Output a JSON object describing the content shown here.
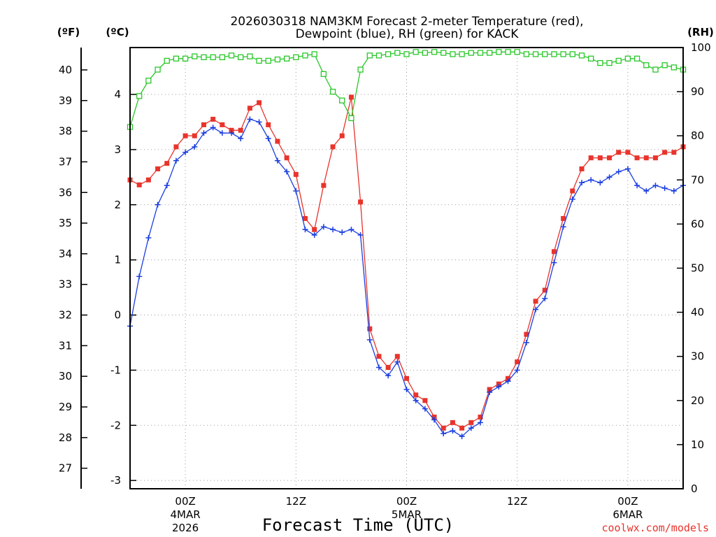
{
  "chart_data": {
    "type": "line",
    "title_line1": "2026030318 NAM3KM Forecast 2-meter Temperature (red),",
    "title_line2": "Dewpoint (blue), RH (green) for KACK",
    "xlabel": "Forecast Time (UTC)",
    "credit": "coolwx.com/models",
    "units": {
      "fahrenheit": "(ºF)",
      "celsius": "(ºC)",
      "rh": "(RH)"
    },
    "x_unit": "hours since 2026-03-03 18Z",
    "x_range": [
      0,
      60
    ],
    "x_ticks": [
      {
        "hour": 6,
        "label": "00Z",
        "sub1": "4MAR",
        "sub2": "2026"
      },
      {
        "hour": 18,
        "label": "12Z",
        "sub1": "",
        "sub2": ""
      },
      {
        "hour": 30,
        "label": "00Z",
        "sub1": "5MAR",
        "sub2": ""
      },
      {
        "hour": 42,
        "label": "12Z",
        "sub1": "",
        "sub2": ""
      },
      {
        "hour": 54,
        "label": "00Z",
        "sub1": "6MAR",
        "sub2": ""
      }
    ],
    "celsius_range": [
      -3.15,
      4.85
    ],
    "celsius_ticks": [
      -3,
      -2,
      -1,
      0,
      1,
      2,
      3,
      4
    ],
    "fahrenheit_ticks": [
      27,
      28,
      29,
      30,
      31,
      32,
      33,
      34,
      35,
      36,
      37,
      38,
      39,
      40
    ],
    "rh_range": [
      0,
      100
    ],
    "rh_ticks": [
      0,
      10,
      20,
      30,
      40,
      50,
      60,
      70,
      80,
      90,
      100
    ],
    "series": [
      {
        "name": "Temperature",
        "color": "#e8342c",
        "marker": "filled-square",
        "axis": "celsius",
        "x": [
          0,
          1,
          2,
          3,
          4,
          5,
          6,
          7,
          8,
          9,
          10,
          11,
          12,
          13,
          14,
          15,
          16,
          17,
          18,
          19,
          20,
          21,
          22,
          23,
          24,
          25,
          26,
          27,
          28,
          29,
          30,
          31,
          32,
          33,
          34,
          35,
          36,
          37,
          38,
          39,
          40,
          41,
          42,
          43,
          44,
          45,
          46,
          47,
          48,
          49,
          50,
          51,
          52,
          53,
          54,
          55,
          56,
          57,
          58,
          59,
          60
        ],
        "values": [
          2.45,
          2.36,
          2.45,
          2.65,
          2.75,
          3.05,
          3.25,
          3.25,
          3.45,
          3.55,
          3.45,
          3.35,
          3.35,
          3.75,
          3.85,
          3.45,
          3.15,
          2.85,
          2.55,
          1.75,
          1.55,
          2.35,
          3.05,
          3.25,
          3.95,
          2.05,
          -0.25,
          -0.75,
          -0.95,
          -0.75,
          -1.15,
          -1.45,
          -1.55,
          -1.85,
          -2.05,
          -1.95,
          -2.05,
          -1.95,
          -1.85,
          -1.35,
          -1.25,
          -1.15,
          -0.85,
          -0.35,
          0.25,
          0.45,
          1.15,
          1.75,
          2.25,
          2.65,
          2.85,
          2.85,
          2.85,
          2.95,
          2.95,
          2.85,
          2.85,
          2.85,
          2.95,
          2.95,
          3.05
        ]
      },
      {
        "name": "Dewpoint",
        "color": "#1a3ee0",
        "marker": "plus",
        "axis": "celsius",
        "x": [
          0,
          1,
          2,
          3,
          4,
          5,
          6,
          7,
          8,
          9,
          10,
          11,
          12,
          13,
          14,
          15,
          16,
          17,
          18,
          19,
          20,
          21,
          22,
          23,
          24,
          25,
          26,
          27,
          28,
          29,
          30,
          31,
          32,
          33,
          34,
          35,
          36,
          37,
          38,
          39,
          40,
          41,
          42,
          43,
          44,
          45,
          46,
          47,
          48,
          49,
          50,
          51,
          52,
          53,
          54,
          55,
          56,
          57,
          58,
          59,
          60
        ],
        "values": [
          -0.2,
          0.7,
          1.4,
          2.0,
          2.35,
          2.8,
          2.95,
          3.05,
          3.3,
          3.4,
          3.3,
          3.3,
          3.2,
          3.55,
          3.5,
          3.2,
          2.8,
          2.6,
          2.25,
          1.55,
          1.45,
          1.6,
          1.55,
          1.5,
          1.55,
          1.45,
          -0.45,
          -0.95,
          -1.1,
          -0.85,
          -1.35,
          -1.55,
          -1.7,
          -1.9,
          -2.15,
          -2.1,
          -2.2,
          -2.05,
          -1.95,
          -1.4,
          -1.3,
          -1.2,
          -1.0,
          -0.5,
          0.1,
          0.3,
          0.95,
          1.6,
          2.1,
          2.4,
          2.45,
          2.4,
          2.5,
          2.6,
          2.65,
          2.35,
          2.25,
          2.35,
          2.3,
          2.25,
          2.35
        ]
      },
      {
        "name": "RH",
        "color": "#28c828",
        "marker": "open-square",
        "axis": "rh",
        "x": [
          0,
          1,
          2,
          3,
          4,
          5,
          6,
          7,
          8,
          9,
          10,
          11,
          12,
          13,
          14,
          15,
          16,
          17,
          18,
          19,
          20,
          21,
          22,
          23,
          24,
          25,
          26,
          27,
          28,
          29,
          30,
          31,
          32,
          33,
          34,
          35,
          36,
          37,
          38,
          39,
          40,
          41,
          42,
          43,
          44,
          45,
          46,
          47,
          48,
          49,
          50,
          51,
          52,
          53,
          54,
          55,
          56,
          57,
          58,
          59,
          60
        ],
        "values": [
          82,
          89,
          92.5,
          95,
          97,
          97.5,
          97.5,
          98,
          97.8,
          97.8,
          97.8,
          98.2,
          97.8,
          98,
          97,
          97,
          97.3,
          97.5,
          97.8,
          98.2,
          98.5,
          94,
          90,
          88,
          84,
          95,
          98.2,
          98.2,
          98.5,
          98.8,
          98.5,
          99,
          98.8,
          99,
          98.8,
          98.5,
          98.5,
          98.8,
          98.8,
          98.8,
          99,
          99,
          99,
          98.5,
          98.5,
          98.5,
          98.5,
          98.5,
          98.5,
          98.2,
          97.5,
          96.5,
          96.5,
          97,
          97.5,
          97.5,
          96,
          95,
          96,
          95.5,
          95
        ]
      }
    ]
  }
}
